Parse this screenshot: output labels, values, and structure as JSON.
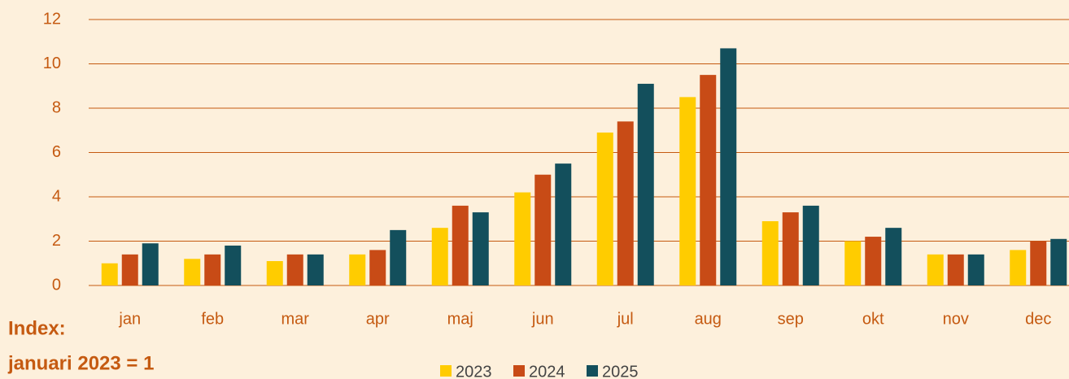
{
  "chart_data": {
    "type": "bar",
    "annotations": [
      "Index:",
      "januari 2023 = 1"
    ],
    "categories": [
      "jan",
      "feb",
      "mar",
      "apr",
      "maj",
      "jun",
      "jul",
      "aug",
      "sep",
      "okt",
      "nov",
      "dec"
    ],
    "series": [
      {
        "name": "2023",
        "color": "#ffcc00",
        "values": [
          1.0,
          1.2,
          1.1,
          1.4,
          2.6,
          4.2,
          6.9,
          8.5,
          2.9,
          2.0,
          1.4,
          1.6
        ]
      },
      {
        "name": "2024",
        "color": "#c84b16",
        "values": [
          1.4,
          1.4,
          1.4,
          1.6,
          3.6,
          5.0,
          7.4,
          9.5,
          3.3,
          2.2,
          1.4,
          2.0
        ]
      },
      {
        "name": "2025",
        "color": "#134f5c",
        "values": [
          1.9,
          1.8,
          1.4,
          2.5,
          3.3,
          5.5,
          9.1,
          10.7,
          3.6,
          2.6,
          1.4,
          2.1
        ]
      }
    ],
    "ylim": [
      0,
      12
    ],
    "yticks": [
      0,
      2,
      4,
      6,
      8,
      10,
      12
    ],
    "grid": true,
    "legend": "bottom"
  }
}
